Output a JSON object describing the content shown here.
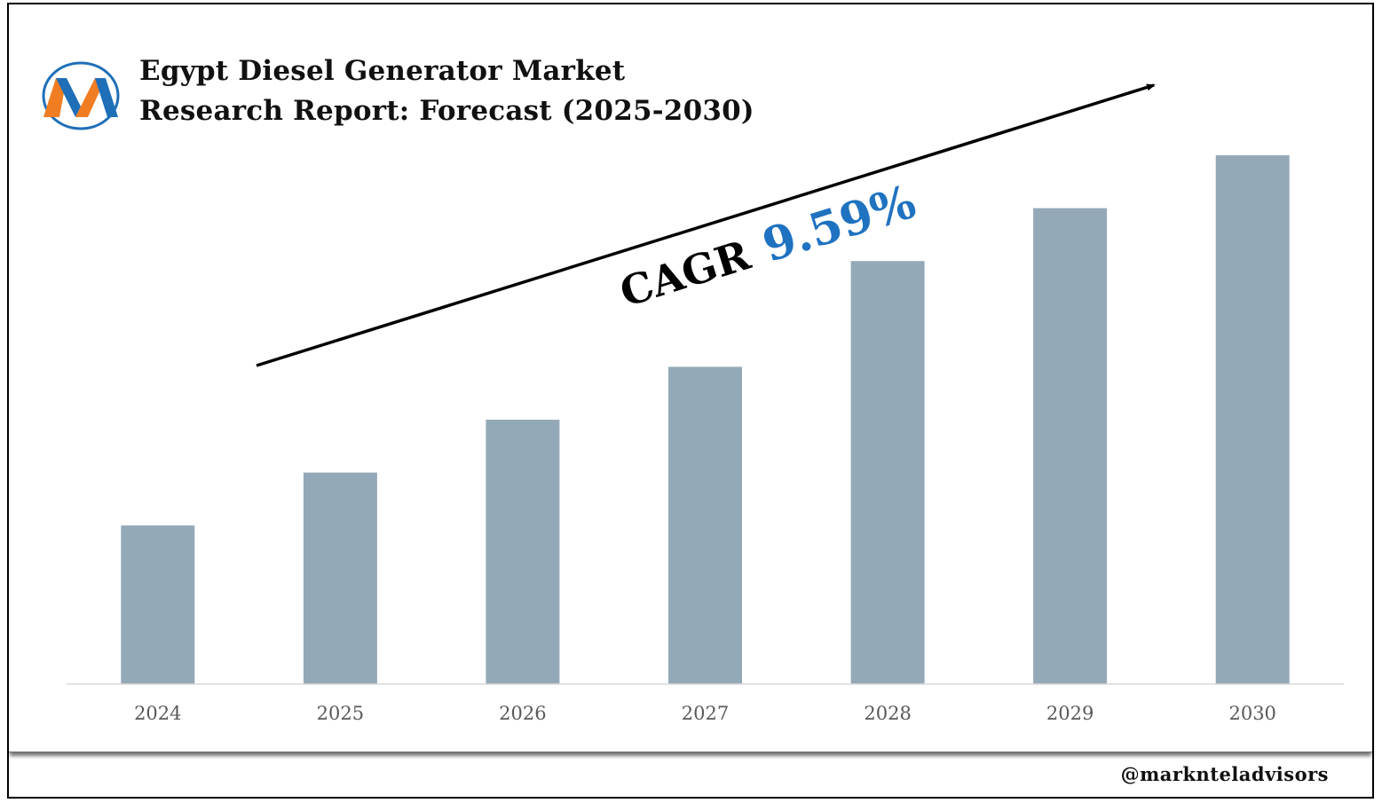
{
  "title_line1": "Egypt Diesel Generator Market",
  "title_line2": "Research Report: Forecast (2025-2030)",
  "cagr_label": "CAGR",
  "cagr_value": "9.59%",
  "footer_handle": "@marknteladvisors",
  "colors": {
    "bar": "#94a9b8",
    "axis": "#d9d9d9",
    "tick_text": "#595959",
    "cagr_value": "#1f72c0",
    "logo_blue": "#1f6fb8",
    "logo_orange": "#f07d22"
  },
  "logo_icon": "marknteladvisors-m-logo",
  "chart_data": {
    "type": "bar",
    "title": "Egypt Diesel Generator Market Research Report: Forecast (2025-2030)",
    "categories": [
      "2024",
      "2025",
      "2026",
      "2027",
      "2028",
      "2029",
      "2030"
    ],
    "values": [
      30,
      40,
      50,
      60,
      80,
      90,
      100
    ],
    "value_note": "relative heights only; no value axis is printed",
    "ylim": [
      0,
      100
    ],
    "xlabel": "",
    "ylabel": "",
    "grid": false,
    "legend": "none",
    "annotation": "CAGR 9.59%"
  }
}
